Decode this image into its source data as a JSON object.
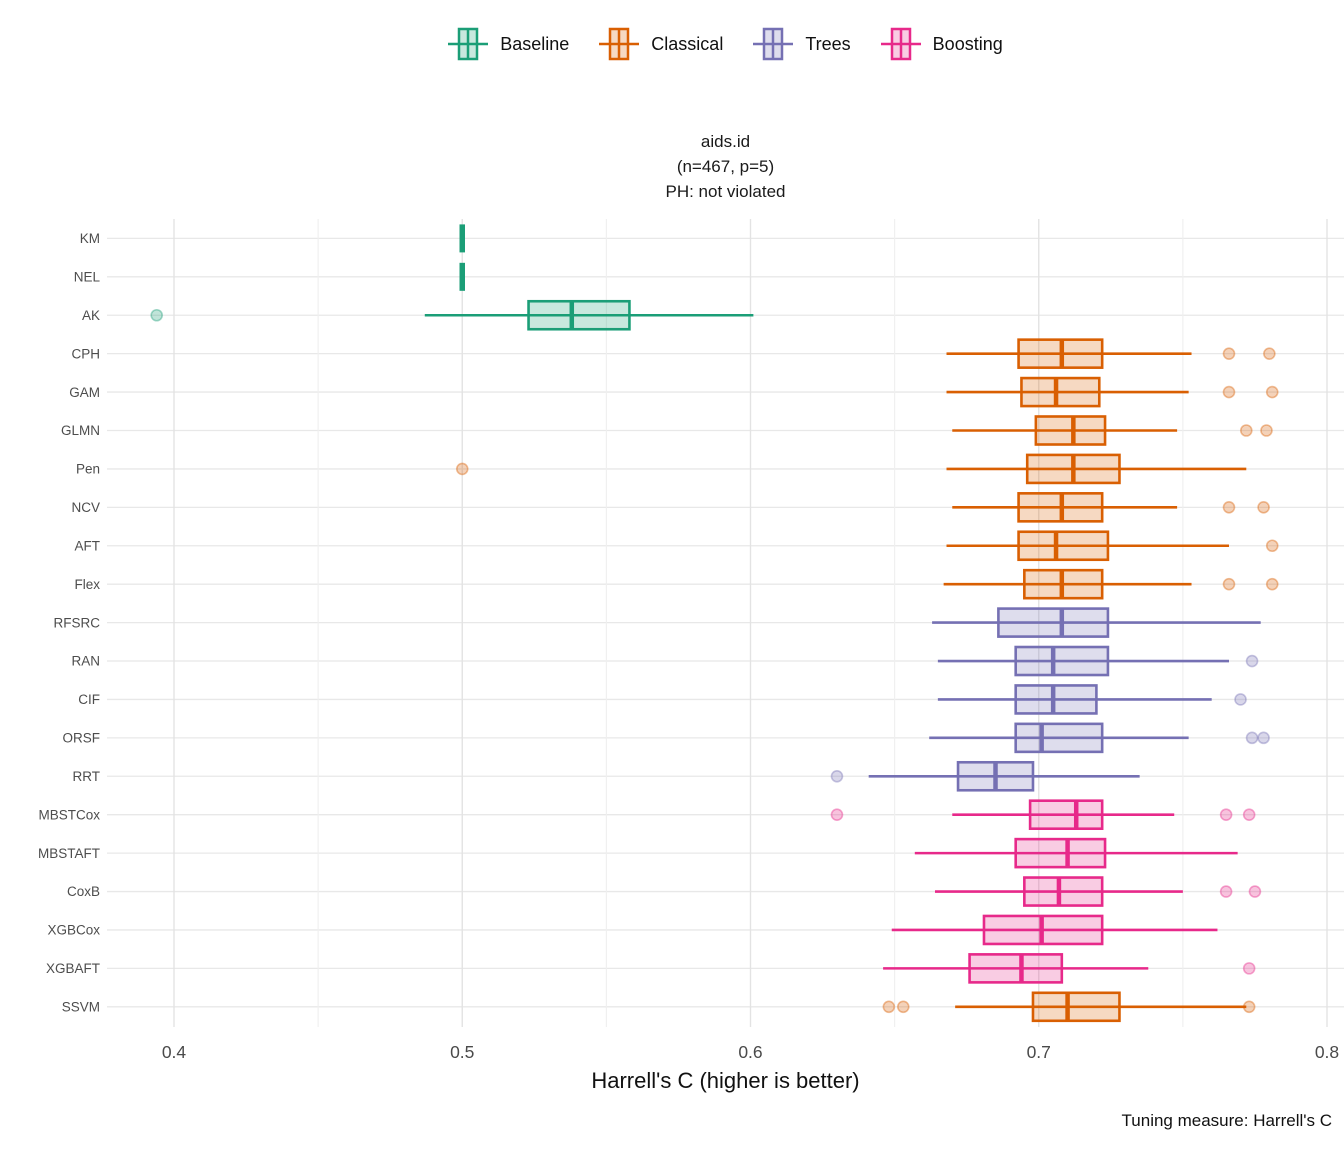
{
  "legend": {
    "items": [
      {
        "label": "Baseline",
        "color": "#1B9E77"
      },
      {
        "label": "Classical",
        "color": "#D95F02"
      },
      {
        "label": "Trees",
        "color": "#7570B3"
      },
      {
        "label": "Boosting",
        "color": "#E7298A"
      }
    ]
  },
  "title": {
    "line1": "aids.id",
    "line2": "(n=467, p=5)",
    "line3": "PH: not violated"
  },
  "caption": "Tuning measure: Harrell's C",
  "chart_data": {
    "type": "boxplot",
    "orientation": "horizontal",
    "xlabel": "Harrell's C (higher is better)",
    "x_ticks": [
      0.4,
      0.5,
      0.6,
      0.7,
      0.8
    ],
    "x_minor_ticks": [
      0.45,
      0.55,
      0.65,
      0.75
    ],
    "xlim": [
      0.377,
      0.806
    ],
    "grid": "on",
    "legend_position": "top",
    "groups": {
      "baseline": {
        "label": "Baseline",
        "color": "#1B9E77"
      },
      "classical": {
        "label": "Classical",
        "color": "#D95F02"
      },
      "trees": {
        "label": "Trees",
        "color": "#7570B3"
      },
      "boosting": {
        "label": "Boosting",
        "color": "#E7298A"
      }
    },
    "models": [
      {
        "name": "KM",
        "group": "baseline",
        "lo": 0.5,
        "q1": 0.5,
        "med": 0.5,
        "q3": 0.5,
        "hi": 0.5,
        "outliers": []
      },
      {
        "name": "NEL",
        "group": "baseline",
        "lo": 0.5,
        "q1": 0.5,
        "med": 0.5,
        "q3": 0.5,
        "hi": 0.5,
        "outliers": []
      },
      {
        "name": "AK",
        "group": "baseline",
        "lo": 0.487,
        "q1": 0.523,
        "med": 0.538,
        "q3": 0.558,
        "hi": 0.601,
        "outliers": [
          0.394
        ]
      },
      {
        "name": "CPH",
        "group": "classical",
        "lo": 0.668,
        "q1": 0.693,
        "med": 0.708,
        "q3": 0.722,
        "hi": 0.753,
        "outliers": [
          0.766,
          0.78
        ]
      },
      {
        "name": "GAM",
        "group": "classical",
        "lo": 0.668,
        "q1": 0.694,
        "med": 0.706,
        "q3": 0.721,
        "hi": 0.752,
        "outliers": [
          0.766,
          0.781
        ]
      },
      {
        "name": "GLMN",
        "group": "classical",
        "lo": 0.67,
        "q1": 0.699,
        "med": 0.712,
        "q3": 0.723,
        "hi": 0.748,
        "outliers": [
          0.772,
          0.779
        ]
      },
      {
        "name": "Pen",
        "group": "classical",
        "lo": 0.668,
        "q1": 0.696,
        "med": 0.712,
        "q3": 0.728,
        "hi": 0.772,
        "outliers": [
          0.5
        ]
      },
      {
        "name": "NCV",
        "group": "classical",
        "lo": 0.67,
        "q1": 0.693,
        "med": 0.708,
        "q3": 0.722,
        "hi": 0.748,
        "outliers": [
          0.766,
          0.778
        ]
      },
      {
        "name": "AFT",
        "group": "classical",
        "lo": 0.668,
        "q1": 0.693,
        "med": 0.706,
        "q3": 0.724,
        "hi": 0.766,
        "outliers": [
          0.781
        ]
      },
      {
        "name": "Flex",
        "group": "classical",
        "lo": 0.667,
        "q1": 0.695,
        "med": 0.708,
        "q3": 0.722,
        "hi": 0.753,
        "outliers": [
          0.766,
          0.781
        ]
      },
      {
        "name": "RFSRC",
        "group": "trees",
        "lo": 0.663,
        "q1": 0.686,
        "med": 0.708,
        "q3": 0.724,
        "hi": 0.777,
        "outliers": []
      },
      {
        "name": "RAN",
        "group": "trees",
        "lo": 0.665,
        "q1": 0.692,
        "med": 0.705,
        "q3": 0.724,
        "hi": 0.766,
        "outliers": [
          0.774
        ]
      },
      {
        "name": "CIF",
        "group": "trees",
        "lo": 0.665,
        "q1": 0.692,
        "med": 0.705,
        "q3": 0.72,
        "hi": 0.76,
        "outliers": [
          0.77
        ]
      },
      {
        "name": "ORSF",
        "group": "trees",
        "lo": 0.662,
        "q1": 0.692,
        "med": 0.701,
        "q3": 0.722,
        "hi": 0.752,
        "outliers": [
          0.774,
          0.778
        ]
      },
      {
        "name": "RRT",
        "group": "trees",
        "lo": 0.641,
        "q1": 0.672,
        "med": 0.685,
        "q3": 0.698,
        "hi": 0.735,
        "outliers": [
          0.63
        ]
      },
      {
        "name": "MBSTCox",
        "group": "boosting",
        "lo": 0.67,
        "q1": 0.697,
        "med": 0.713,
        "q3": 0.722,
        "hi": 0.747,
        "outliers": [
          0.63,
          0.765,
          0.773
        ]
      },
      {
        "name": "MBSTAFT",
        "group": "boosting",
        "lo": 0.657,
        "q1": 0.692,
        "med": 0.71,
        "q3": 0.723,
        "hi": 0.769,
        "outliers": []
      },
      {
        "name": "CoxB",
        "group": "boosting",
        "lo": 0.664,
        "q1": 0.695,
        "med": 0.707,
        "q3": 0.722,
        "hi": 0.75,
        "outliers": [
          0.765,
          0.775
        ]
      },
      {
        "name": "XGBCox",
        "group": "boosting",
        "lo": 0.649,
        "q1": 0.681,
        "med": 0.701,
        "q3": 0.722,
        "hi": 0.762,
        "outliers": []
      },
      {
        "name": "XGBAFT",
        "group": "boosting",
        "lo": 0.646,
        "q1": 0.676,
        "med": 0.694,
        "q3": 0.708,
        "hi": 0.738,
        "outliers": [
          0.773
        ]
      },
      {
        "name": "SSVM",
        "group": "classical",
        "lo": 0.671,
        "q1": 0.698,
        "med": 0.71,
        "q3": 0.728,
        "hi": 0.772,
        "outliers": [
          0.648,
          0.653,
          0.773
        ]
      }
    ]
  }
}
